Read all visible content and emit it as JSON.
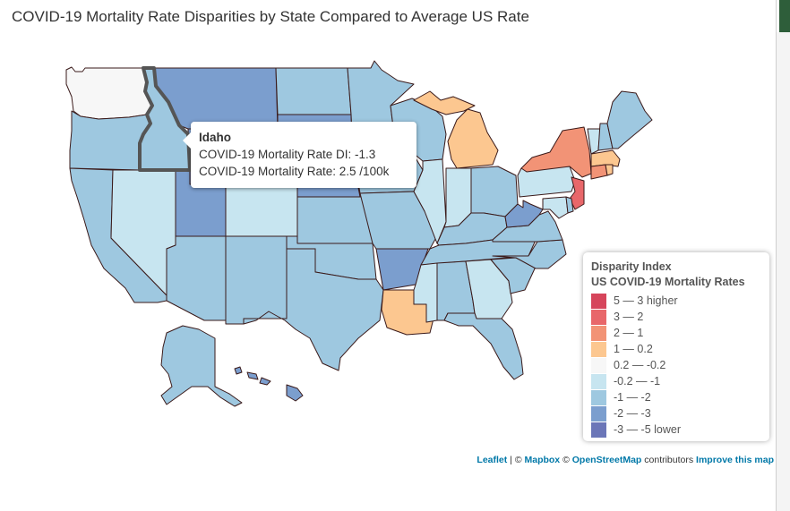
{
  "title": "COVID-19 Mortality Rate Disparities by State Compared to Average US Rate",
  "tooltip": {
    "state": "Idaho",
    "di_line": "COVID-19 Mortality Rate DI: -1.3",
    "rate_line": "COVID-19 Mortality Rate: 2.5 /100k"
  },
  "legend": {
    "title1": "Disparity Index",
    "title2": "US COVID-19 Mortality Rates",
    "items": [
      {
        "label": "5 — 3 higher",
        "color": "#d6455b"
      },
      {
        "label": "3 — 2",
        "color": "#e8676a"
      },
      {
        "label": "2 — 1",
        "color": "#f29376"
      },
      {
        "label": "1 — 0.2",
        "color": "#fcc790"
      },
      {
        "label": "0.2 — -0.2",
        "color": "#f7f7f7"
      },
      {
        "label": "-0.2 — -1",
        "color": "#c7e5f0"
      },
      {
        "label": "-1 — -2",
        "color": "#9ec8e0"
      },
      {
        "label": "-2 — -3",
        "color": "#7b9ece"
      },
      {
        "label": "-3 — -5 lower",
        "color": "#6b76b8"
      }
    ]
  },
  "attribution": {
    "leaflet": "Leaflet",
    "sep1": " | © ",
    "mapbox": "Mapbox",
    "sep2": " © ",
    "osm": "OpenStreetMap",
    "contrib": " contributors ",
    "improve": "Improve this map"
  },
  "states": {
    "WA": "0.2 — -0.2",
    "OR": "-1 — -2",
    "CA": "-1 — -2",
    "ID": "-1 — -2",
    "NV": "-0.2 — -1",
    "MT": "-2 — -3",
    "WY": "-2 — -3",
    "UT": "-2 — -3",
    "AZ": "-1 — -2",
    "CO": "-0.2 — -1",
    "NM": "-1 — -2",
    "ND": "-1 — -2",
    "SD": "-2 — -3",
    "NE": "-2 — -3",
    "KS": "-1 — -2",
    "OK": "-1 — -2",
    "TX": "-1 — -2",
    "MN": "-1 — -2",
    "IA": "-1 — -2",
    "MO": "-1 — -2",
    "AR": "-2 — -3",
    "LA": "1 — 0.2",
    "WI": "-1 — -2",
    "IL": "-0.2 — -1",
    "MI": "1 — 0.2",
    "IN": "-0.2 — -1",
    "OH": "-1 — -2",
    "KY": "-1 — -2",
    "TN": "-1 — -2",
    "MS": "-0.2 — -1",
    "AL": "-1 — -2",
    "GA": "-0.2 — -1",
    "FL": "-1 — -2",
    "SC": "-1 — -2",
    "NC": "-1 — -2",
    "VA": "-1 — -2",
    "WV": "-2 — -3",
    "PA": "-0.2 — -1",
    "NY": "2 — 1",
    "NJ": "3 — 2",
    "MD": "-0.2 — -1",
    "DE": "-1 — -2",
    "CT": "2 — 1",
    "RI": "1 — 0.2",
    "MA": "1 — 0.2",
    "VT": "-0.2 — -1",
    "NH": "-1 — -2",
    "ME": "-1 — -2",
    "AK": "-1 — -2",
    "HI": "-2 — -3"
  }
}
